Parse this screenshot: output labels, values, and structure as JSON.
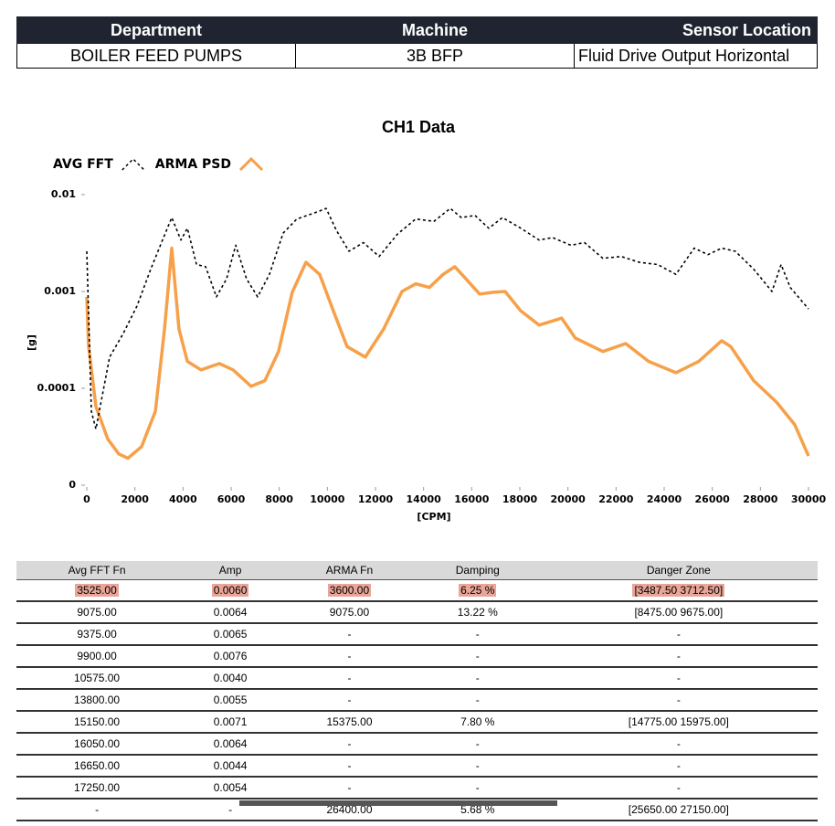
{
  "header": {
    "columns": [
      "Department",
      "Machine",
      "Sensor Location"
    ],
    "row": [
      "BOILER FEED PUMPS",
      "3B BFP",
      "Fluid Drive Output Horizontal"
    ]
  },
  "chart_data": {
    "type": "line",
    "title": "CH1 Data",
    "x_label": "[CPM]",
    "y_label": "[g]",
    "y_scale": "log",
    "xlim": [
      0,
      30000
    ],
    "xticks": [
      0,
      2000,
      4000,
      6000,
      8000,
      10000,
      12000,
      14000,
      16000,
      18000,
      20000,
      22000,
      24000,
      26000,
      28000,
      30000
    ],
    "ylim": [
      1e-05,
      0.01
    ],
    "yticks": [
      {
        "value": 1e-05,
        "label": "0"
      },
      0.0001,
      0.001,
      0.01
    ],
    "series": [
      {
        "name": "AVG FFT",
        "color": "#000000",
        "dashed": true,
        "x": [
          0,
          190,
          380,
          950,
          1520,
          2090,
          2660,
          3150,
          3530,
          3910,
          4180,
          4560,
          4940,
          5390,
          5810,
          6190,
          6640,
          7100,
          7590,
          8160,
          8730,
          9490,
          9950,
          10370,
          10900,
          11500,
          12150,
          12910,
          13670,
          14430,
          15110,
          15570,
          16140,
          16710,
          17280,
          18040,
          18800,
          19360,
          20120,
          20690,
          21450,
          22210,
          22970,
          23730,
          24490,
          25250,
          25820,
          26390,
          26960,
          27720,
          28480,
          28860,
          29240,
          30000
        ],
        "values": [
          0.0026,
          5.8e-05,
          3.8e-05,
          0.00021,
          0.00037,
          0.00071,
          0.0017,
          0.0034,
          0.0058,
          0.0034,
          0.0045,
          0.0019,
          0.0018,
          0.00088,
          0.00135,
          0.003,
          0.00135,
          0.00088,
          0.0015,
          0.004,
          0.0056,
          0.0065,
          0.0072,
          0.0043,
          0.0026,
          0.0032,
          0.0023,
          0.0039,
          0.0056,
          0.0053,
          0.0072,
          0.0058,
          0.0061,
          0.0045,
          0.0058,
          0.0045,
          0.0034,
          0.0036,
          0.003,
          0.0032,
          0.0022,
          0.0023,
          0.002,
          0.0019,
          0.0015,
          0.0028,
          0.0024,
          0.0028,
          0.0026,
          0.0017,
          0.001,
          0.0019,
          0.0011,
          0.00066
        ]
      },
      {
        "name": "ARMA PSD",
        "color": "#f7a04a",
        "dashed": false,
        "x": [
          0,
          76,
          380,
          870,
          1330,
          1710,
          2280,
          2850,
          3230,
          3530,
          3830,
          4180,
          4750,
          5510,
          6080,
          6830,
          7400,
          7970,
          8540,
          9110,
          9680,
          10250,
          10820,
          11580,
          12340,
          13100,
          13670,
          14240,
          14810,
          15300,
          15760,
          16330,
          16900,
          17390,
          18040,
          18800,
          19740,
          20310,
          21450,
          22400,
          23350,
          24490,
          25440,
          26390,
          26770,
          27720,
          28670,
          29430,
          30000
        ],
        "values": [
          0.00088,
          0.00027,
          6.5e-05,
          3e-05,
          2.1e-05,
          1.9e-05,
          2.5e-05,
          5.8e-05,
          0.00041,
          0.0028,
          0.00041,
          0.00019,
          0.000155,
          0.00018,
          0.000155,
          0.000105,
          0.00012,
          0.00024,
          0.00098,
          0.002,
          0.0015,
          0.00063,
          0.00027,
          0.00021,
          0.00041,
          0.001,
          0.0012,
          0.0011,
          0.0015,
          0.0018,
          0.00135,
          0.00094,
          0.00098,
          0.001,
          0.00063,
          0.00045,
          0.00053,
          0.00033,
          0.00024,
          0.00029,
          0.00019,
          0.000145,
          0.00019,
          0.00031,
          0.00027,
          0.00012,
          7.2e-05,
          4.2e-05,
          2e-05
        ]
      }
    ]
  },
  "table": {
    "columns": [
      "Avg FFT Fn",
      "Amp",
      "ARMA Fn",
      "Damping",
      "Danger Zone"
    ],
    "highlighted_row": 0,
    "rows": [
      [
        "3525.00",
        "0.0060",
        "3600.00",
        "6.25 %",
        "[3487.50  3712.50]"
      ],
      [
        "9075.00",
        "0.0064",
        "9075.00",
        "13.22 %",
        "[8475.00  9675.00]"
      ],
      [
        "9375.00",
        "0.0065",
        "-",
        "-",
        "-"
      ],
      [
        "9900.00",
        "0.0076",
        "-",
        "-",
        "-"
      ],
      [
        "10575.00",
        "0.0040",
        "-",
        "-",
        "-"
      ],
      [
        "13800.00",
        "0.0055",
        "-",
        "-",
        "-"
      ],
      [
        "15150.00",
        "0.0071",
        "15375.00",
        "7.80 %",
        "[14775.00  15975.00]"
      ],
      [
        "16050.00",
        "0.0064",
        "-",
        "-",
        "-"
      ],
      [
        "16650.00",
        "0.0044",
        "-",
        "-",
        "-"
      ],
      [
        "17250.00",
        "0.0054",
        "-",
        "-",
        "-"
      ],
      [
        "-",
        "-",
        "26400.00",
        "5.68 %",
        "[25650.00  27150.00]"
      ]
    ]
  }
}
